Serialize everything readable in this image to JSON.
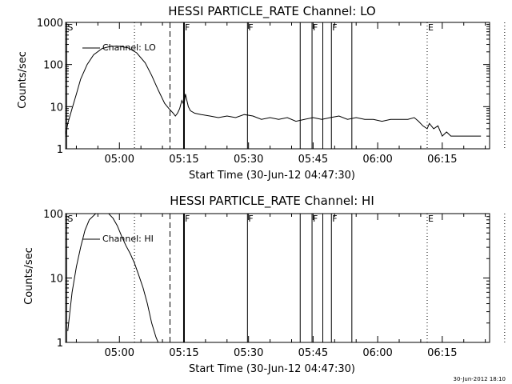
{
  "chart_data": [
    {
      "type": "line",
      "title": "HESSI PARTICLE_RATE Channel: LO",
      "xlabel": "Start Time (30-Jun-12 04:47:30)",
      "ylabel": "Counts/sec",
      "yscale": "log",
      "ylim": [
        1,
        1000
      ],
      "yticks": [
        "1",
        "10",
        "100",
        "1000"
      ],
      "xticks": [
        "05:00",
        "05:15",
        "05:30",
        "05:45",
        "06:00",
        "06:15"
      ],
      "xlim": [
        "04:47:30",
        "06:26:00"
      ],
      "legend": "Channel: LO",
      "legend_placement": "top-left",
      "line_color": "#000000",
      "markers": [
        {
          "time": "04:47:45",
          "label": "S",
          "style": "solid"
        },
        {
          "time": "05:03:30",
          "label": "",
          "style": "dotted"
        },
        {
          "time": "05:11:45",
          "label": "",
          "style": "dashed"
        },
        {
          "time": "05:15:00",
          "label": "F",
          "style": "solid-thick"
        },
        {
          "time": "05:29:45",
          "label": "F",
          "style": "solid"
        },
        {
          "time": "05:42:00",
          "label": "",
          "style": "solid"
        },
        {
          "time": "05:44:45",
          "label": "F",
          "style": "solid"
        },
        {
          "time": "05:47:15",
          "label": "",
          "style": "solid"
        },
        {
          "time": "05:49:15",
          "label": "F",
          "style": "solid"
        },
        {
          "time": "05:54:00",
          "label": "",
          "style": "solid"
        },
        {
          "time": "06:11:30",
          "label": "E",
          "style": "dotted"
        },
        {
          "time": "06:29:30",
          "label": "",
          "style": "dotted"
        }
      ],
      "series": [
        {
          "name": "Channel: LO",
          "x": [
            "04:47:30",
            "04:48:00",
            "04:49:00",
            "04:50:00",
            "04:51:00",
            "04:52:30",
            "04:54:00",
            "04:56:00",
            "04:58:00",
            "05:00:00",
            "05:02:00",
            "05:04:00",
            "05:06:00",
            "05:07:30",
            "05:09:00",
            "05:10:30",
            "05:11:30",
            "05:12:30",
            "05:13:00",
            "05:13:30",
            "05:14:00",
            "05:14:30",
            "05:15:00",
            "05:15:20",
            "05:15:40",
            "05:16:00",
            "05:16:30",
            "05:17:30",
            "05:19:00",
            "05:21:00",
            "05:23:00",
            "05:25:00",
            "05:27:00",
            "05:29:00",
            "05:31:00",
            "05:33:00",
            "05:35:00",
            "05:37:00",
            "05:39:00",
            "05:41:00",
            "05:43:00",
            "05:45:00",
            "05:47:00",
            "05:49:00",
            "05:51:00",
            "05:53:00",
            "05:55:00",
            "05:57:00",
            "05:59:00",
            "06:01:00",
            "06:03:00",
            "06:05:00",
            "06:07:00",
            "06:08:30",
            "06:09:30",
            "06:10:30",
            "06:11:30",
            "06:12:00",
            "06:13:00",
            "06:14:00",
            "06:15:00",
            "06:16:00",
            "06:17:00",
            "06:18:00",
            "06:19:00",
            "06:20:00",
            "06:21:00",
            "06:22:00",
            "06:23:00",
            "06:24:00"
          ],
          "values": [
            2,
            4,
            9,
            20,
            45,
            100,
            170,
            240,
            270,
            270,
            250,
            190,
            110,
            55,
            25,
            12,
            9,
            7,
            6,
            7,
            9,
            14,
            11,
            20,
            14,
            10,
            8,
            7,
            6.5,
            6,
            5.5,
            6,
            5.5,
            6.5,
            6,
            5,
            5.5,
            5,
            5.5,
            4.5,
            5,
            5.5,
            5,
            5.5,
            6,
            5,
            5.5,
            5,
            5,
            4.5,
            5,
            5,
            5,
            5.5,
            4.5,
            3.5,
            3,
            4,
            3,
            3.5,
            2,
            2.5,
            2,
            2,
            2,
            2,
            2,
            2,
            2,
            2
          ]
        }
      ]
    },
    {
      "type": "line",
      "title": "HESSI PARTICLE_RATE Channel: HI",
      "xlabel": "Start Time (30-Jun-12 04:47:30)",
      "ylabel": "Counts/sec",
      "yscale": "log",
      "ylim": [
        1,
        100
      ],
      "yticks": [
        "1",
        "10",
        "100"
      ],
      "xticks": [
        "05:00",
        "05:15",
        "05:30",
        "05:45",
        "06:00",
        "06:15"
      ],
      "xlim": [
        "04:47:30",
        "06:26:00"
      ],
      "legend": "Channel: HI",
      "legend_placement": "top-left",
      "line_color": "#000000",
      "markers": [
        {
          "time": "04:47:45",
          "label": "S",
          "style": "solid"
        },
        {
          "time": "05:03:30",
          "label": "",
          "style": "dotted"
        },
        {
          "time": "05:11:45",
          "label": "",
          "style": "dashed"
        },
        {
          "time": "05:15:00",
          "label": "F",
          "style": "solid-thick"
        },
        {
          "time": "05:29:45",
          "label": "F",
          "style": "solid"
        },
        {
          "time": "05:42:00",
          "label": "",
          "style": "solid"
        },
        {
          "time": "05:44:45",
          "label": "F",
          "style": "solid"
        },
        {
          "time": "05:47:15",
          "label": "",
          "style": "solid"
        },
        {
          "time": "05:49:15",
          "label": "F",
          "style": "solid"
        },
        {
          "time": "05:54:00",
          "label": "",
          "style": "solid"
        },
        {
          "time": "06:11:30",
          "label": "E",
          "style": "dotted"
        },
        {
          "time": "06:29:30",
          "label": "",
          "style": "dotted"
        }
      ],
      "series": [
        {
          "name": "Channel: HI",
          "x": [
            "04:48:00",
            "04:49:00",
            "04:50:00",
            "04:51:00",
            "04:52:00",
            "04:53:00",
            "04:54:30",
            "04:55:30",
            "04:56:30",
            "04:57:30",
            "04:58:30",
            "04:59:30",
            "05:00:30",
            "05:01:30",
            "05:02:30",
            "05:03:30",
            "05:04:30",
            "05:05:30",
            "05:06:30",
            "05:07:30",
            "05:08:30",
            "05:09:00"
          ],
          "values": [
            1.5,
            6,
            15,
            30,
            55,
            80,
            100,
            108,
            105,
            100,
            85,
            65,
            45,
            32,
            24,
            17,
            11,
            7,
            4,
            2,
            1.2,
            1
          ]
        }
      ]
    }
  ],
  "footer_stamp": "30-Jun-2012 18:10"
}
